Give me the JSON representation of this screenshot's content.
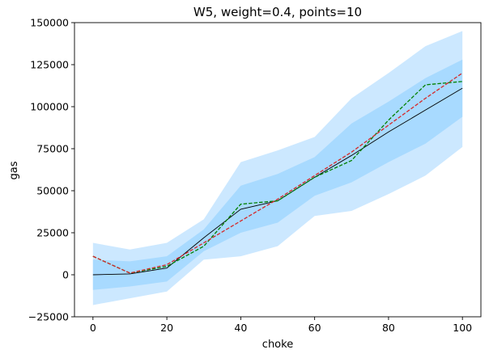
{
  "chart_data": {
    "type": "line",
    "title": "W5, weight=0.4, points=10",
    "xlabel": "choke",
    "ylabel": "gas",
    "xlim": [
      -5,
      105
    ],
    "ylim": [
      -25000,
      150000
    ],
    "xticks": [
      0,
      20,
      40,
      60,
      80,
      100
    ],
    "yticks": [
      -25000,
      0,
      25000,
      50000,
      75000,
      100000,
      125000,
      150000
    ],
    "grid": false,
    "legend": "none",
    "x": [
      0,
      10,
      20,
      30,
      40,
      50,
      60,
      70,
      80,
      90,
      100
    ],
    "bands": [
      {
        "role": "outer",
        "color": "#cce8ff",
        "lower": [
          -18000,
          -14000,
          -10000,
          9000,
          11000,
          17000,
          35000,
          38000,
          48000,
          59000,
          76000
        ],
        "upper": [
          19000,
          15000,
          19000,
          33000,
          67000,
          74000,
          82000,
          105000,
          120000,
          136000,
          145000
        ]
      },
      {
        "role": "inner",
        "color": "#a8daff",
        "lower": [
          -9000,
          -7000,
          -4000,
          14000,
          25000,
          31000,
          47000,
          55000,
          67000,
          78000,
          94000
        ],
        "upper": [
          9000,
          8000,
          11000,
          27000,
          53000,
          60000,
          70000,
          90000,
          103000,
          117000,
          128000
        ]
      }
    ],
    "series": [
      {
        "color": "#000000",
        "style": "solid",
        "values": [
          0,
          500,
          4000,
          22000,
          39000,
          44000,
          58000,
          71000,
          85000,
          98000,
          111000
        ]
      },
      {
        "color": "#008000",
        "style": "dashed",
        "values": [
          11000,
          1000,
          5000,
          17000,
          42000,
          44000,
          58000,
          68000,
          92000,
          113000,
          115000
        ]
      },
      {
        "color": "#d62728",
        "style": "dashed",
        "values": [
          11000,
          1000,
          6000,
          19000,
          32000,
          45000,
          59000,
          73000,
          89000,
          105000,
          120000
        ]
      }
    ]
  }
}
